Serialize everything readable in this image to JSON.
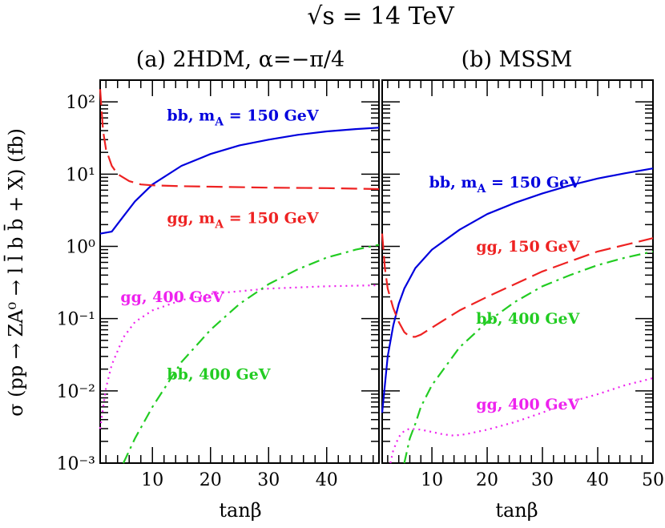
{
  "figure": {
    "title": "√s = 14 TeV",
    "ylabel": "σ (pp → ZA⁰ → l l̄ b b̄ + X) (fb)",
    "xlabel": "tanβ"
  },
  "chart_data": [
    {
      "type": "line",
      "title": "(a) 2HDM, α=−π/4",
      "xlabel": "tanβ",
      "ylabel": "σ (pp → ZA⁰ → l l̄ b b̄ + X) (fb)",
      "xlim": [
        1,
        49
      ],
      "ylim": [
        0.001,
        200
      ],
      "yscale": "log",
      "xticks": [
        10,
        20,
        30,
        40
      ],
      "yticks": [
        0.001,
        0.01,
        0.1,
        1,
        10,
        100
      ],
      "ytick_labels": [
        "10⁻³",
        "10⁻²",
        "10⁻¹",
        "10⁰",
        "10¹",
        "10²"
      ],
      "series": [
        {
          "name": "bb, m_A = 150 GeV",
          "color": "#0000dd",
          "style": "solid",
          "x": [
            1,
            3,
            5,
            7,
            10,
            15,
            20,
            25,
            30,
            35,
            40,
            45,
            49
          ],
          "y": [
            1.5,
            1.6,
            2.6,
            4.2,
            7.2,
            13,
            19,
            25,
            30,
            35,
            39,
            42,
            44
          ]
        },
        {
          "name": "gg, m_A = 150 GeV",
          "color": "#ee2222",
          "style": "dashed",
          "x": [
            1,
            1.5,
            2,
            3,
            4,
            6,
            8,
            10,
            15,
            20,
            30,
            40,
            49
          ],
          "y": [
            150,
            40,
            22,
            13,
            10,
            8,
            7.2,
            7,
            6.8,
            6.7,
            6.5,
            6.4,
            6.2
          ]
        },
        {
          "name": "gg, 400 GeV",
          "color": "#ee22ee",
          "style": "dotted",
          "x": [
            1,
            2,
            3,
            5,
            7,
            10,
            15,
            20,
            30,
            40,
            49
          ],
          "y": [
            0.003,
            0.011,
            0.023,
            0.055,
            0.09,
            0.13,
            0.18,
            0.22,
            0.26,
            0.28,
            0.29
          ]
        },
        {
          "name": "bb, 400 GeV",
          "color": "#22cc22",
          "style": "dashdot",
          "x": [
            5,
            7,
            10,
            15,
            20,
            25,
            30,
            35,
            40,
            45,
            49
          ],
          "y": [
            0.001,
            0.0022,
            0.006,
            0.025,
            0.07,
            0.16,
            0.3,
            0.48,
            0.7,
            0.9,
            1.05
          ]
        }
      ],
      "annotations": [
        {
          "text": "bb, m",
          "sub": "A",
          "rest": " = 150 GeV",
          "color": "#0000dd",
          "x": 12.5,
          "y": 55
        },
        {
          "text": "gg, m",
          "sub": "A",
          "rest": " = 150 GeV",
          "color": "#ee2222",
          "x": 12.5,
          "y": 2.1
        },
        {
          "text": "gg, 400 GeV",
          "color": "#ee22ee",
          "x": 4.5,
          "y": 0.17
        },
        {
          "text": "bb, 400 GeV",
          "color": "#22cc22",
          "x": 12.5,
          "y": 0.0145
        }
      ]
    },
    {
      "type": "line",
      "title": "(b) MSSM",
      "xlabel": "tanβ",
      "ylabel": "σ (pp → ZA⁰ → l l̄ b b̄ + X) (fb)",
      "xlim": [
        1,
        50
      ],
      "ylim": [
        0.001,
        200
      ],
      "yscale": "log",
      "xticks": [
        10,
        20,
        30,
        40,
        50
      ],
      "yticks": [
        0.001,
        0.01,
        0.1,
        1,
        10,
        100
      ],
      "series": [
        {
          "name": "bb, m_A = 150 GeV",
          "color": "#0000dd",
          "style": "solid",
          "x": [
            1,
            2,
            3,
            4,
            5,
            7,
            10,
            15,
            20,
            25,
            30,
            35,
            40,
            45,
            50
          ],
          "y": [
            0.005,
            0.03,
            0.08,
            0.16,
            0.26,
            0.5,
            0.9,
            1.7,
            2.8,
            4.0,
            5.4,
            7.0,
            8.7,
            10.3,
            12
          ]
        },
        {
          "name": "gg, 150 GeV",
          "color": "#ee2222",
          "style": "dashed",
          "x": [
            1,
            1.5,
            2,
            3,
            4,
            5,
            6,
            7,
            8,
            10,
            15,
            20,
            25,
            30,
            35,
            40,
            45,
            50
          ],
          "y": [
            1.5,
            0.5,
            0.26,
            0.14,
            0.09,
            0.065,
            0.056,
            0.056,
            0.06,
            0.075,
            0.13,
            0.2,
            0.3,
            0.45,
            0.62,
            0.85,
            1.05,
            1.3
          ]
        },
        {
          "name": "bb, 400 GeV",
          "color": "#22cc22",
          "style": "dashdot",
          "x": [
            5,
            6,
            7,
            8,
            10,
            15,
            20,
            25,
            30,
            35,
            40,
            45,
            50
          ],
          "y": [
            0.001,
            0.0022,
            0.0035,
            0.006,
            0.012,
            0.04,
            0.09,
            0.17,
            0.28,
            0.4,
            0.55,
            0.7,
            0.85
          ]
        },
        {
          "name": "gg, 400 GeV",
          "color": "#ee22ee",
          "style": "dotted",
          "x": [
            2.5,
            3,
            4,
            5,
            6,
            8,
            10,
            12,
            14,
            16,
            20,
            25,
            30,
            35,
            40,
            45,
            50
          ],
          "y": [
            0.001,
            0.0015,
            0.0023,
            0.0028,
            0.003,
            0.0029,
            0.0027,
            0.0025,
            0.0024,
            0.0025,
            0.0029,
            0.0037,
            0.005,
            0.007,
            0.009,
            0.012,
            0.015
          ]
        }
      ],
      "annotations": [
        {
          "text": "bb, m",
          "sub": "A",
          "rest": " = 150 GeV",
          "color": "#0000dd",
          "x": 9.5,
          "y": 6.5
        },
        {
          "text": "gg, 150 GeV",
          "color": "#ee2222",
          "x": 18,
          "y": 0.85
        },
        {
          "text": "bb, 400 GeV",
          "color": "#22cc22",
          "x": 18,
          "y": 0.085
        },
        {
          "text": "gg, 400 GeV",
          "color": "#ee22ee",
          "x": 18,
          "y": 0.0055
        }
      ]
    }
  ]
}
